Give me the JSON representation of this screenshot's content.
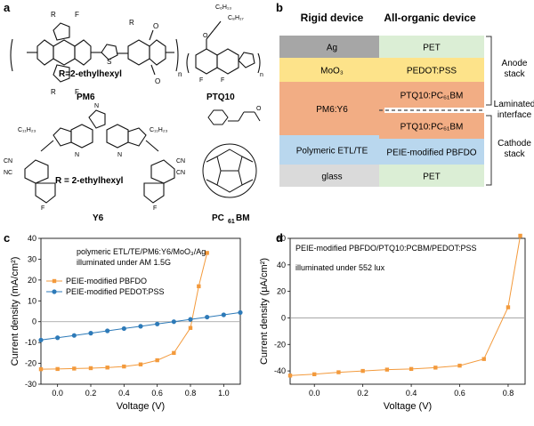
{
  "panels": {
    "a": {
      "letter": "a",
      "labels": {
        "pm6": "PM6",
        "pm6_r": "R=2-ethylhexyl",
        "ptq10": "PTQ10",
        "y6": "Y6",
        "y6_r": "R = 2-ethylhexyl",
        "pc61bm_main": "PC",
        "pc61bm_sub": "61",
        "pc61bm_end": "BM",
        "r": "R",
        "f": "F",
        "s": "S",
        "n": "N",
        "o": "O",
        "cn": "CN",
        "nc": "NC",
        "c11h23": "C₁₁H₂₃",
        "c6h13": "C₆H₁₃",
        "c8h17": "C₈H₁₇",
        "n_rep": "n"
      }
    },
    "b": {
      "letter": "b",
      "rigid_title": "Rigid device",
      "organic_title": "All-organic device",
      "rigid_layers": [
        "Ag",
        "MoO₃",
        "PM6:Y6",
        "Polymeric ETL/TE",
        "glass"
      ],
      "organic_layers": [
        "PET",
        "PEDOT:PSS",
        "PTQ10:PC₆₁BM",
        "PTQ10:PC₆₁BM",
        "PEIE-modified PBFDO",
        "PET"
      ],
      "anode_label": [
        "Anode",
        "stack"
      ],
      "laminated_label": [
        "Laminated",
        "interface"
      ],
      "cathode_label": [
        "Cathode",
        "stack"
      ],
      "colors": {
        "ag": "#a6a6a6",
        "moo3": "#fde38a",
        "active": "#f2ad84",
        "etl": "#b9d7ee",
        "glass": "#dadada",
        "pet": "#dbeed5",
        "pedot": "#fde38a",
        "ptq": "#f2ad84",
        "peie": "#b9d7ee"
      }
    },
    "c": {
      "letter": "c",
      "annotation_line1": "polymeric ETL/TE/PM6:Y6/MoO₃/Ag",
      "annotation_line2": "illuminated under AM 1.5G"
    },
    "d": {
      "letter": "d",
      "annotation_line1": "PEIE-modified PBFDO/PTQ10:PCBM/PEDOT:PSS",
      "annotation_line2": "illuminated under 552 lux"
    }
  },
  "chart_data": [
    {
      "panel": "c",
      "type": "line",
      "xlabel": "Voltage (V)",
      "ylabel": "Current density (mA/cm²)",
      "xlim": [
        -0.1,
        1.1
      ],
      "ylim": [
        -30,
        40
      ],
      "xticks": [
        0.0,
        0.2,
        0.4,
        0.6,
        0.8,
        1.0
      ],
      "xtick_labels": [
        "0.0",
        "0.2",
        "0.4",
        "0.6",
        "0.8",
        "1.0"
      ],
      "yticks": [
        -30,
        -20,
        -10,
        0,
        10,
        20,
        30,
        40
      ],
      "ytick_labels": [
        "-30",
        "-20",
        "-10",
        "0",
        "10",
        "20",
        "30",
        "40"
      ],
      "legend_position": "upper-left",
      "series": [
        {
          "name": "PEIE-modified PBFDO",
          "color": "#f39a3c",
          "marker": "square",
          "x": [
            -0.1,
            0.0,
            0.1,
            0.2,
            0.3,
            0.4,
            0.5,
            0.6,
            0.7,
            0.8,
            0.85,
            0.9
          ],
          "y": [
            -22.8,
            -22.7,
            -22.5,
            -22.3,
            -22.0,
            -21.5,
            -20.5,
            -18.5,
            -15.0,
            -3.0,
            17.0,
            33.0
          ]
        },
        {
          "name": "PEIE-modified PEDOT:PSS",
          "color": "#2d7ab8",
          "marker": "circle",
          "x": [
            -0.1,
            0.0,
            0.1,
            0.2,
            0.3,
            0.4,
            0.5,
            0.6,
            0.7,
            0.8,
            0.9,
            1.0,
            1.1
          ],
          "y": [
            -8.8,
            -7.7,
            -6.6,
            -5.5,
            -4.4,
            -3.3,
            -2.2,
            -1.1,
            0.0,
            1.1,
            2.2,
            3.3,
            4.4
          ]
        }
      ]
    },
    {
      "panel": "d",
      "type": "line",
      "xlabel": "Voltage (V)",
      "ylabel": "Current density (μA/cm²)",
      "xlim": [
        -0.1,
        0.87
      ],
      "ylim": [
        -50,
        60
      ],
      "xticks": [
        0.0,
        0.2,
        0.4,
        0.6,
        0.8
      ],
      "xtick_labels": [
        "0.0",
        "0.2",
        "0.4",
        "0.6",
        "0.8"
      ],
      "yticks": [
        -40,
        -20,
        0,
        20,
        40,
        60
      ],
      "ytick_labels": [
        "-40",
        "-20",
        "0",
        "20",
        "40",
        "60"
      ],
      "series": [
        {
          "name": "PEIE-modified PBFDO/PTQ10:PCBM/PEDOT:PSS",
          "color": "#f39a3c",
          "marker": "square",
          "x": [
            -0.1,
            0.0,
            0.1,
            0.2,
            0.3,
            0.4,
            0.5,
            0.6,
            0.7,
            0.8,
            0.85
          ],
          "y": [
            -43.5,
            -42.5,
            -41.0,
            -40.0,
            -39.0,
            -38.5,
            -37.5,
            -36.0,
            -31.0,
            8.0,
            62.0
          ]
        }
      ]
    }
  ]
}
